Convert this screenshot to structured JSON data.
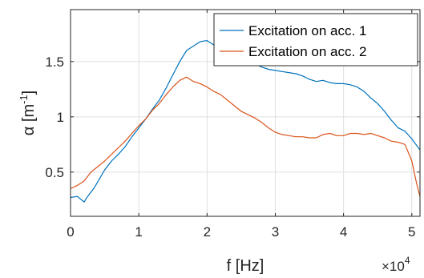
{
  "chart_data": {
    "type": "line",
    "title": "",
    "xlabel": "f [Hz]",
    "ylabel": "α [m",
    "ylabel_sup": "-1",
    "ylabel_close": "]",
    "x_exponent_base": "×10",
    "x_exponent_power": "4",
    "xlim": [
      0,
      51200
    ],
    "ylim": [
      0.1,
      1.97
    ],
    "x_ticks": [
      0,
      10000,
      20000,
      30000,
      40000,
      50000
    ],
    "x_tick_labels": [
      "0",
      "1",
      "2",
      "3",
      "4",
      "5"
    ],
    "y_ticks": [
      0.5,
      1.0,
      1.5
    ],
    "y_tick_labels": [
      "0.5",
      "1",
      "1.5"
    ],
    "grid": true,
    "legend_position": "top-right",
    "series": [
      {
        "name": "Excitation on acc. 1",
        "color": "#0072BD",
        "x": [
          0,
          1000,
          2000,
          2500,
          3500,
          5000,
          6000,
          7000,
          8000,
          9000,
          10000,
          11000,
          12000,
          13000,
          14000,
          15000,
          16000,
          17000,
          18000,
          19000,
          20000,
          21000,
          22000,
          23000,
          24000,
          25000,
          26000,
          27000,
          28000,
          29000,
          30000,
          31000,
          32000,
          33000,
          34000,
          35000,
          36000,
          37000,
          38000,
          39000,
          40000,
          41000,
          42000,
          43000,
          44000,
          45000,
          46000,
          47000,
          48000,
          49000,
          50000,
          51200
        ],
        "y": [
          0.27,
          0.28,
          0.23,
          0.28,
          0.36,
          0.52,
          0.6,
          0.66,
          0.73,
          0.82,
          0.9,
          0.98,
          1.07,
          1.15,
          1.26,
          1.38,
          1.5,
          1.6,
          1.64,
          1.68,
          1.69,
          1.65,
          1.61,
          1.58,
          1.56,
          1.53,
          1.5,
          1.48,
          1.45,
          1.43,
          1.42,
          1.41,
          1.4,
          1.39,
          1.37,
          1.34,
          1.32,
          1.33,
          1.31,
          1.3,
          1.3,
          1.29,
          1.27,
          1.23,
          1.17,
          1.12,
          1.05,
          0.97,
          0.9,
          0.87,
          0.8,
          0.7
        ]
      },
      {
        "name": "Excitation on acc. 2",
        "color": "#D95319",
        "x": [
          0,
          1000,
          2000,
          3000,
          4000,
          5000,
          6000,
          7000,
          8000,
          9000,
          10000,
          11000,
          12000,
          13000,
          14000,
          15000,
          16000,
          17000,
          18000,
          19000,
          20000,
          21000,
          22000,
          23000,
          24000,
          25000,
          26000,
          27000,
          28000,
          29000,
          30000,
          31000,
          32000,
          33000,
          34000,
          35000,
          36000,
          37000,
          38000,
          39000,
          40000,
          41000,
          42000,
          43000,
          44000,
          45000,
          46000,
          47000,
          48000,
          49000,
          50000,
          50700,
          51200
        ],
        "y": [
          0.35,
          0.38,
          0.42,
          0.5,
          0.55,
          0.6,
          0.66,
          0.72,
          0.78,
          0.85,
          0.92,
          0.98,
          1.06,
          1.12,
          1.2,
          1.27,
          1.33,
          1.36,
          1.32,
          1.3,
          1.27,
          1.23,
          1.2,
          1.15,
          1.1,
          1.05,
          1.02,
          0.99,
          0.95,
          0.9,
          0.86,
          0.84,
          0.83,
          0.82,
          0.82,
          0.81,
          0.81,
          0.84,
          0.85,
          0.83,
          0.83,
          0.85,
          0.85,
          0.84,
          0.85,
          0.83,
          0.81,
          0.78,
          0.77,
          0.75,
          0.6,
          0.4,
          0.28
        ]
      }
    ]
  }
}
